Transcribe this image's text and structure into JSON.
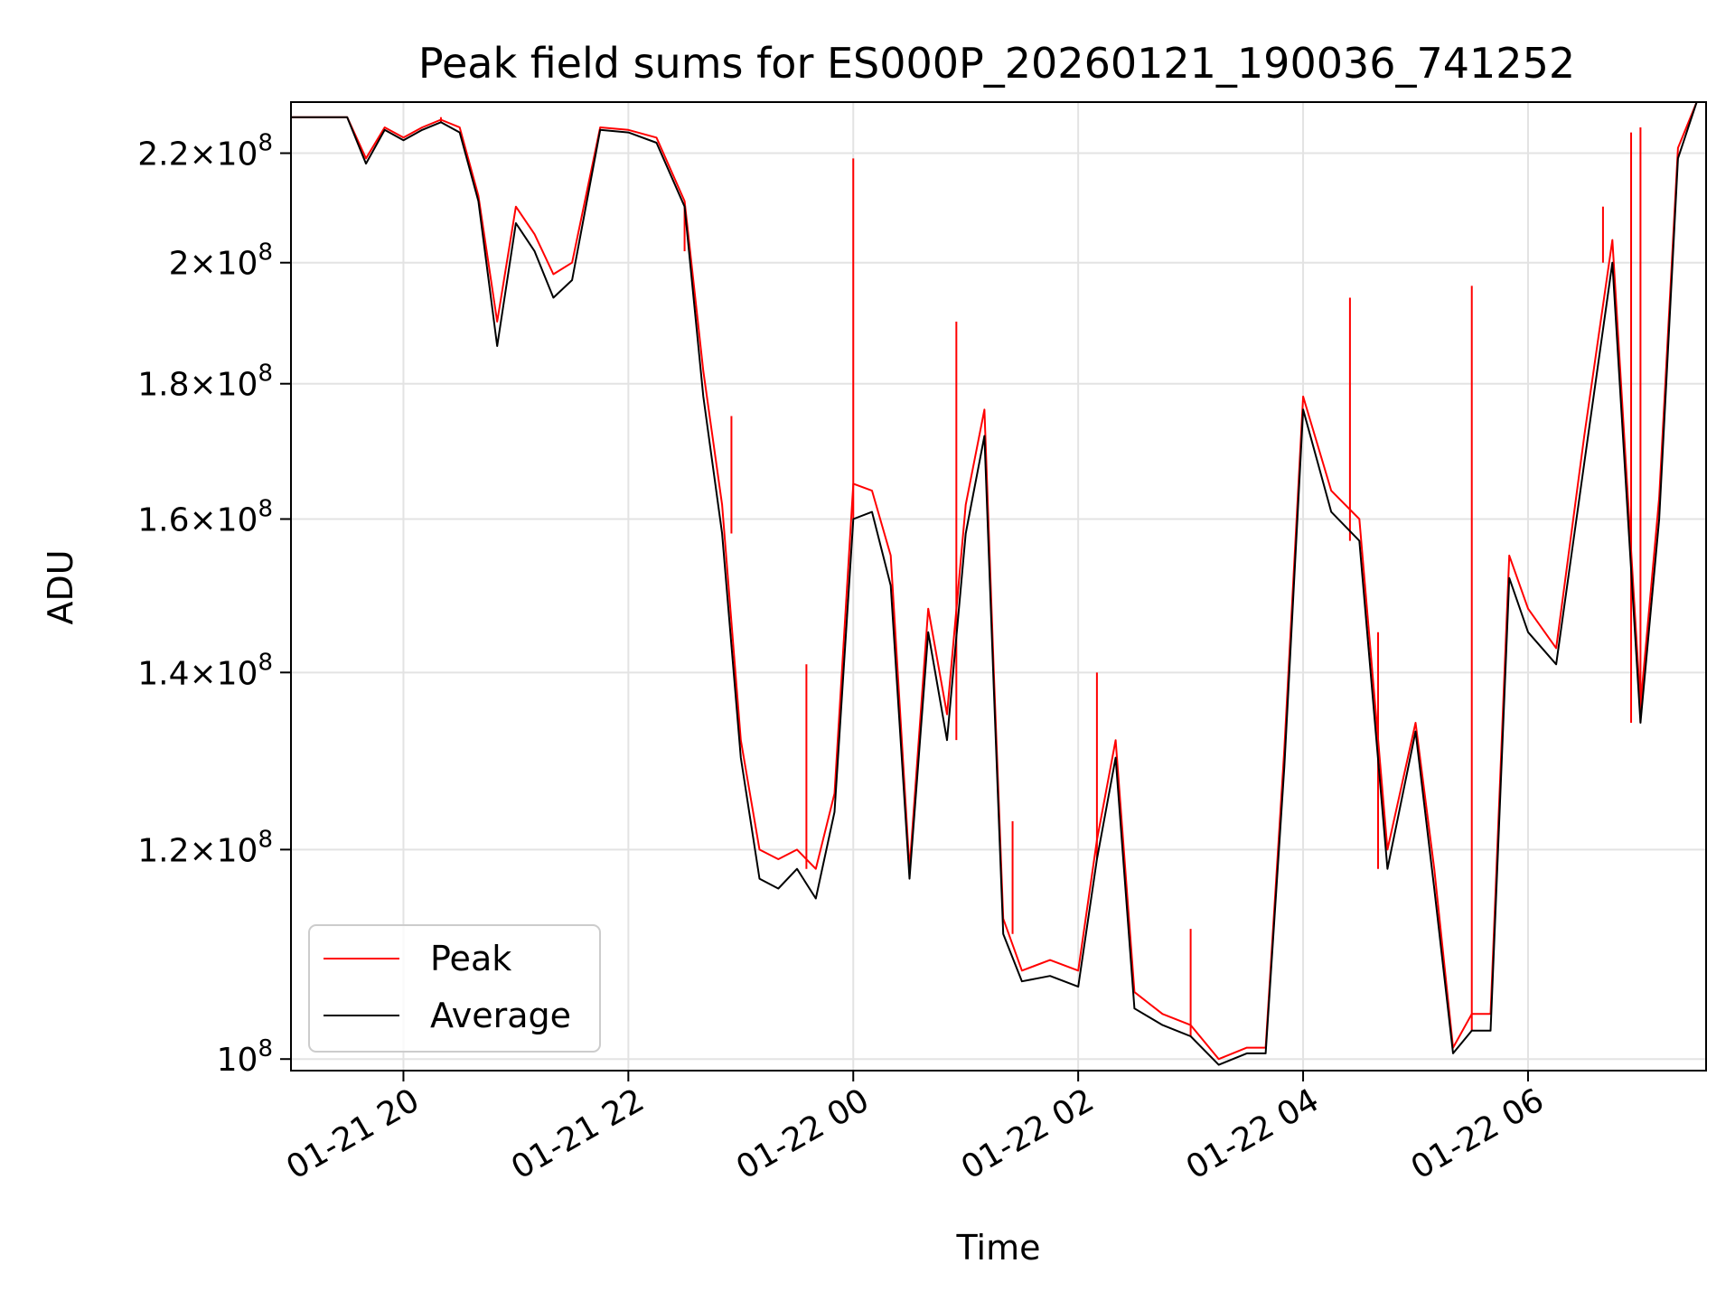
{
  "chart_data": {
    "type": "line",
    "title": "Peak field sums for ES000P_20260121_190036_741252",
    "xlabel": "Time",
    "ylabel": "ADU",
    "yscale": "log",
    "grid": true,
    "legend_position": "lower-left",
    "xlim": [
      "2026-01-21 19:00",
      "2026-01-22 07:35"
    ],
    "ylim": [
      99000000,
      230000000
    ],
    "x_ticks": [
      "2026-01-21 20:00",
      "2026-01-21 22:00",
      "2026-01-22 00:00",
      "2026-01-22 02:00",
      "2026-01-22 04:00",
      "2026-01-22 06:00"
    ],
    "x_tick_labels": [
      "01-21 20",
      "01-21 22",
      "01-22 00",
      "01-22 02",
      "01-22 04",
      "01-22 06"
    ],
    "y_ticks": [
      {
        "value": 100000000,
        "mantissa": "",
        "exponent": "8"
      },
      {
        "value": 120000000,
        "mantissa": "1.2",
        "exponent": "8"
      },
      {
        "value": 140000000,
        "mantissa": "1.4",
        "exponent": "8"
      },
      {
        "value": 160000000,
        "mantissa": "1.6",
        "exponent": "8"
      },
      {
        "value": 180000000,
        "mantissa": "1.8",
        "exponent": "8"
      },
      {
        "value": 200000000,
        "mantissa": "2",
        "exponent": "8"
      },
      {
        "value": 220000000,
        "mantissa": "2.2",
        "exponent": "8"
      }
    ],
    "tick_label_base": "10",
    "tick_label_times": "×",
    "series": [
      {
        "name": "Peak",
        "color": "#ff0000",
        "points": [
          [
            "2026-01-21 19:00",
            227000000
          ],
          [
            "2026-01-21 19:15",
            227000000
          ],
          [
            "2026-01-21 19:30",
            227000000
          ],
          [
            "2026-01-21 19:40",
            219000000
          ],
          [
            "2026-01-21 19:50",
            225000000
          ],
          [
            "2026-01-21 20:00",
            223000000
          ],
          [
            "2026-01-21 20:10",
            225000000
          ],
          [
            "2026-01-21 20:20",
            226500000
          ],
          [
            "2026-01-21 20:30",
            225000000
          ],
          [
            "2026-01-21 20:40",
            212000000
          ],
          [
            "2026-01-21 20:50",
            190000000
          ],
          [
            "2026-01-21 21:00",
            210000000
          ],
          [
            "2026-01-21 21:10",
            205000000
          ],
          [
            "2026-01-21 21:20",
            198000000
          ],
          [
            "2026-01-21 21:30",
            200000000
          ],
          [
            "2026-01-21 21:45",
            225000000
          ],
          [
            "2026-01-21 22:00",
            224500000
          ],
          [
            "2026-01-21 22:15",
            223000000
          ],
          [
            "2026-01-21 22:30",
            211000000
          ],
          [
            "2026-01-21 22:40",
            182000000
          ],
          [
            "2026-01-21 22:50",
            162000000
          ],
          [
            "2026-01-21 23:00",
            132000000
          ],
          [
            "2026-01-21 23:10",
            120000000
          ],
          [
            "2026-01-21 23:20",
            119000000
          ],
          [
            "2026-01-21 23:30",
            120000000
          ],
          [
            "2026-01-21 23:40",
            118000000
          ],
          [
            "2026-01-21 23:50",
            126000000
          ],
          [
            "2026-01-22 00:00",
            165000000
          ],
          [
            "2026-01-22 00:10",
            164000000
          ],
          [
            "2026-01-22 00:20",
            155000000
          ],
          [
            "2026-01-22 00:30",
            118000000
          ],
          [
            "2026-01-22 00:40",
            148000000
          ],
          [
            "2026-01-22 00:50",
            135000000
          ],
          [
            "2026-01-22 01:00",
            162000000
          ],
          [
            "2026-01-22 01:10",
            176000000
          ],
          [
            "2026-01-22 01:15",
            140000000
          ],
          [
            "2026-01-22 01:20",
            113000000
          ],
          [
            "2026-01-22 01:30",
            108000000
          ],
          [
            "2026-01-22 01:45",
            109000000
          ],
          [
            "2026-01-22 02:00",
            108000000
          ],
          [
            "2026-01-22 02:10",
            121000000
          ],
          [
            "2026-01-22 02:20",
            132000000
          ],
          [
            "2026-01-22 02:30",
            106000000
          ],
          [
            "2026-01-22 02:45",
            104000000
          ],
          [
            "2026-01-22 03:00",
            103000000
          ],
          [
            "2026-01-22 03:15",
            100000000
          ],
          [
            "2026-01-22 03:30",
            101000000
          ],
          [
            "2026-01-22 03:40",
            101000000
          ],
          [
            "2026-01-22 03:50",
            131000000
          ],
          [
            "2026-01-22 04:00",
            178000000
          ],
          [
            "2026-01-22 04:15",
            164000000
          ],
          [
            "2026-01-22 04:30",
            160000000
          ],
          [
            "2026-01-22 04:45",
            120000000
          ],
          [
            "2026-01-22 05:00",
            134000000
          ],
          [
            "2026-01-22 05:10",
            118000000
          ],
          [
            "2026-01-22 05:20",
            101000000
          ],
          [
            "2026-01-22 05:30",
            104000000
          ],
          [
            "2026-01-22 05:40",
            104000000
          ],
          [
            "2026-01-22 05:50",
            155000000
          ],
          [
            "2026-01-22 06:00",
            148000000
          ],
          [
            "2026-01-22 06:15",
            143000000
          ],
          [
            "2026-01-22 06:30",
            172000000
          ],
          [
            "2026-01-22 06:45",
            204000000
          ],
          [
            "2026-01-22 07:00",
            136000000
          ],
          [
            "2026-01-22 07:10",
            163000000
          ],
          [
            "2026-01-22 07:20",
            221000000
          ],
          [
            "2026-01-22 07:30",
            230000000
          ]
        ]
      },
      {
        "name": "Average",
        "color": "#000000",
        "points": [
          [
            "2026-01-21 19:00",
            227000000
          ],
          [
            "2026-01-21 19:15",
            227000000
          ],
          [
            "2026-01-21 19:30",
            227000000
          ],
          [
            "2026-01-21 19:40",
            218000000
          ],
          [
            "2026-01-21 19:50",
            224500000
          ],
          [
            "2026-01-21 20:00",
            222500000
          ],
          [
            "2026-01-21 20:10",
            224500000
          ],
          [
            "2026-01-21 20:20",
            226000000
          ],
          [
            "2026-01-21 20:30",
            224000000
          ],
          [
            "2026-01-21 20:40",
            211000000
          ],
          [
            "2026-01-21 20:50",
            186000000
          ],
          [
            "2026-01-21 21:00",
            207000000
          ],
          [
            "2026-01-21 21:10",
            202000000
          ],
          [
            "2026-01-21 21:20",
            194000000
          ],
          [
            "2026-01-21 21:30",
            197000000
          ],
          [
            "2026-01-21 21:45",
            224500000
          ],
          [
            "2026-01-21 22:00",
            224000000
          ],
          [
            "2026-01-21 22:15",
            222000000
          ],
          [
            "2026-01-21 22:30",
            210000000
          ],
          [
            "2026-01-21 22:40",
            178000000
          ],
          [
            "2026-01-21 22:50",
            158000000
          ],
          [
            "2026-01-21 23:00",
            130000000
          ],
          [
            "2026-01-21 23:10",
            117000000
          ],
          [
            "2026-01-21 23:20",
            116000000
          ],
          [
            "2026-01-21 23:30",
            118000000
          ],
          [
            "2026-01-21 23:40",
            115000000
          ],
          [
            "2026-01-21 23:50",
            124000000
          ],
          [
            "2026-01-22 00:00",
            160000000
          ],
          [
            "2026-01-22 00:10",
            161000000
          ],
          [
            "2026-01-22 00:20",
            151000000
          ],
          [
            "2026-01-22 00:30",
            117000000
          ],
          [
            "2026-01-22 00:40",
            145000000
          ],
          [
            "2026-01-22 00:50",
            132000000
          ],
          [
            "2026-01-22 01:00",
            158000000
          ],
          [
            "2026-01-22 01:10",
            172000000
          ],
          [
            "2026-01-22 01:15",
            138000000
          ],
          [
            "2026-01-22 01:20",
            111500000
          ],
          [
            "2026-01-22 01:30",
            107000000
          ],
          [
            "2026-01-22 01:45",
            107500000
          ],
          [
            "2026-01-22 02:00",
            106500000
          ],
          [
            "2026-01-22 02:10",
            119000000
          ],
          [
            "2026-01-22 02:20",
            130000000
          ],
          [
            "2026-01-22 02:30",
            104500000
          ],
          [
            "2026-01-22 02:45",
            103000000
          ],
          [
            "2026-01-22 03:00",
            102000000
          ],
          [
            "2026-01-22 03:15",
            99500000
          ],
          [
            "2026-01-22 03:30",
            100500000
          ],
          [
            "2026-01-22 03:40",
            100500000
          ],
          [
            "2026-01-22 03:50",
            129000000
          ],
          [
            "2026-01-22 04:00",
            176000000
          ],
          [
            "2026-01-22 04:15",
            161000000
          ],
          [
            "2026-01-22 04:30",
            157000000
          ],
          [
            "2026-01-22 04:45",
            118000000
          ],
          [
            "2026-01-22 05:00",
            133000000
          ],
          [
            "2026-01-22 05:10",
            116000000
          ],
          [
            "2026-01-22 05:20",
            100500000
          ],
          [
            "2026-01-22 05:30",
            102500000
          ],
          [
            "2026-01-22 05:40",
            102500000
          ],
          [
            "2026-01-22 05:50",
            152000000
          ],
          [
            "2026-01-22 06:00",
            145000000
          ],
          [
            "2026-01-22 06:15",
            141000000
          ],
          [
            "2026-01-22 06:30",
            168000000
          ],
          [
            "2026-01-22 06:45",
            200000000
          ],
          [
            "2026-01-22 07:00",
            134000000
          ],
          [
            "2026-01-22 07:10",
            160000000
          ],
          [
            "2026-01-22 07:20",
            219000000
          ],
          [
            "2026-01-22 07:30",
            230000000
          ]
        ]
      }
    ],
    "peak_spikes": [
      [
        "2026-01-21 20:20",
        227000000
      ],
      [
        "2026-01-21 22:30",
        202000000
      ],
      [
        "2026-01-21 22:55",
        175000000
      ],
      [
        "2026-01-21 23:35",
        141000000
      ],
      [
        "2026-01-22 00:00",
        219000000
      ],
      [
        "2026-01-22 00:55",
        190000000
      ],
      [
        "2026-01-22 01:25",
        123000000
      ],
      [
        "2026-01-22 02:10",
        140000000
      ],
      [
        "2026-01-22 03:00",
        112000000
      ],
      [
        "2026-01-22 04:25",
        194000000
      ],
      [
        "2026-01-22 04:40",
        145000000
      ],
      [
        "2026-01-22 05:30",
        196000000
      ],
      [
        "2026-01-22 06:40",
        210000000
      ],
      [
        "2026-01-22 06:55",
        224000000
      ],
      [
        "2026-01-22 07:00",
        225000000
      ]
    ]
  }
}
